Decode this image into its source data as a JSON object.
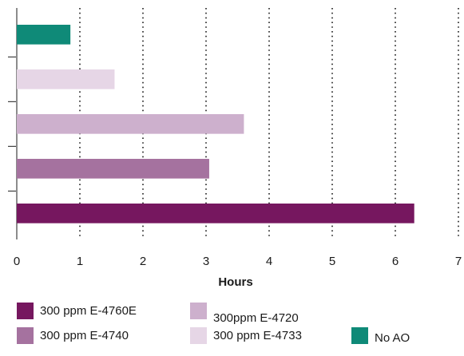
{
  "chart_data": {
    "type": "bar",
    "orientation": "horizontal",
    "title": "",
    "xlabel": "Hours",
    "ylabel": "",
    "xlim": [
      0,
      7
    ],
    "x_ticks": [
      "0",
      "1",
      "2",
      "3",
      "4",
      "5",
      "6",
      "7"
    ],
    "grid": "vertical dotted",
    "legend_placement": "bottom",
    "series": [
      {
        "name": "No AO",
        "value": 0.85,
        "color": "#0f8a78"
      },
      {
        "name": "300 ppm E-4733",
        "value": 1.55,
        "color": "#e6d6e6"
      },
      {
        "name": "300ppm E-4720",
        "value": 3.6,
        "color": "#cdb0cd"
      },
      {
        "name": "300 ppm E-4740",
        "value": 3.05,
        "color": "#a5729f"
      },
      {
        "name": "300 ppm E-4760E",
        "value": 6.3,
        "color": "#76175f"
      }
    ],
    "legend_order": [
      "300 ppm E-4760E",
      "300ppm E-4720",
      "300 ppm E-4740",
      "300 ppm E-4733",
      "No AO"
    ]
  }
}
